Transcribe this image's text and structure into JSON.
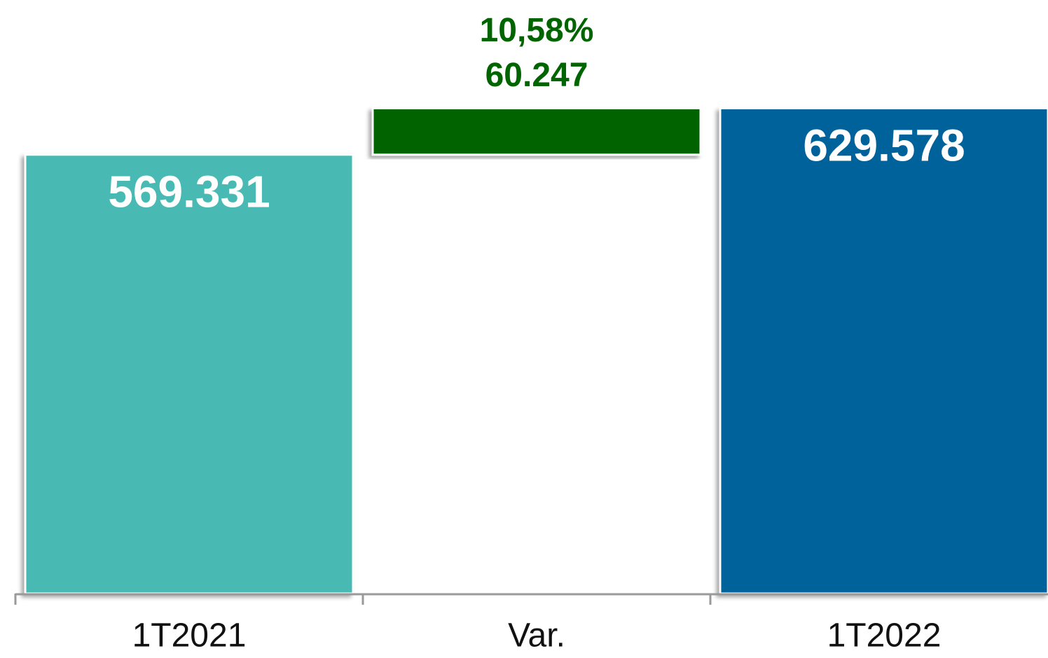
{
  "chart_data": {
    "type": "waterfall",
    "categories": [
      "1T2021",
      "Var.",
      "1T2022"
    ],
    "measures": [
      "absolute",
      "relative",
      "total"
    ],
    "values": [
      569331,
      60247,
      629578
    ],
    "value_labels": [
      "569.331",
      "60.247",
      "629.578"
    ],
    "colors": [
      "#4abab3",
      "#006400",
      "#00629b"
    ],
    "annotation": "10,58%",
    "ylim": [
      0,
      770000
    ]
  }
}
